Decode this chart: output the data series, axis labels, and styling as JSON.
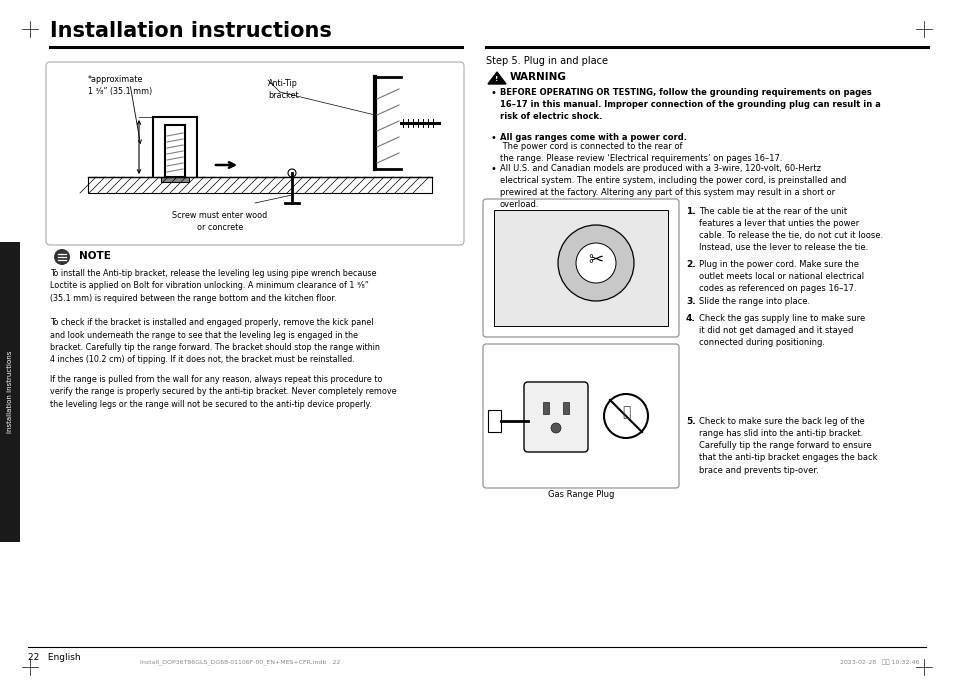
{
  "title": "Installation instructions",
  "bg_color": "#ffffff",
  "page_number": "22   English",
  "footer_left": "Install_DOP36T86GLS_DG68-01106F-00_EN+MES+CFR.indb   22",
  "footer_right": "2023-02-28   오후 10:32:46",
  "step5_title": "Step 5. Plug in and place",
  "warning_title": "WARNING",
  "bullet1": "BEFORE OPERATING OR TESTING, follow the grounding requirements on pages\n16–17 in this manual. Improper connection of the grounding plug can result in a\nrisk of electric shock.",
  "bullet2_bold": "All gas ranges come with a power cord.",
  "bullet2_normal": " The power cord is connected to the rear of\nthe range. Please review ‘Electrical requirements’ on pages 16–17.",
  "bullet3": "All U.S. and Canadian models are produced with a 3-wire, 120-volt, 60-Hertz\nelectrical system. The entire system, including the power cord, is preinstalled and\nprewired at the factory. Altering any part of this system may result in a short or\noverload.",
  "step1": "The cable tie at the rear of the unit\nfeatures a lever that unties the power\ncable. To release the tie, do not cut it loose.\nInstead, use the lever to release the tie.",
  "step2": "Plug in the power cord. Make sure the\noutlet meets local or national electrical\ncodes as referenced on pages 16–17.",
  "step3": "Slide the range into place.",
  "step4": "Check the gas supply line to make sure\nit did not get damaged and it stayed\nconnected during positioning.",
  "step5": "Check to make sure the back leg of the\nrange has slid into the anti-tip bracket.\nCarefully tip the range forward to ensure\nthat the anti-tip bracket engages the back\nbrace and prevents tip-over.",
  "gas_range_plug_label": "Gas Range Plug",
  "note_title": "NOTE",
  "note1": "To install the Anti-tip bracket, release the leveling leg using pipe wrench because\nLoctite is applied on Bolt for vibration unlocking. A minimum clearance of 1 ³⁄₈”\n(35.1 mm) is required between the range bottom and the kitchen floor.",
  "note2": "To check if the bracket is installed and engaged properly, remove the kick panel\nand look underneath the range to see that the leveling leg is engaged in the\nbracket. Carefully tip the range forward. The bracket should stop the range within\n4 inches (10.2 cm) of tipping. If it does not, the bracket must be reinstalled.",
  "note3": "If the range is pulled from the wall for any reason, always repeat this procedure to\nverify the range is properly secured by the anti-tip bracket. Never completely remove\nthe leveling legs or the range will not be secured to the anti-tip device properly.",
  "diag_approx": "*approximate\n1 ³⁄₈” (35.1 mm)",
  "diag_anti_tip": "Anti-Tip\nbracket",
  "diag_screw": "Screw must enter wood\nor concrete",
  "side_tab_text": "Installation instructions"
}
